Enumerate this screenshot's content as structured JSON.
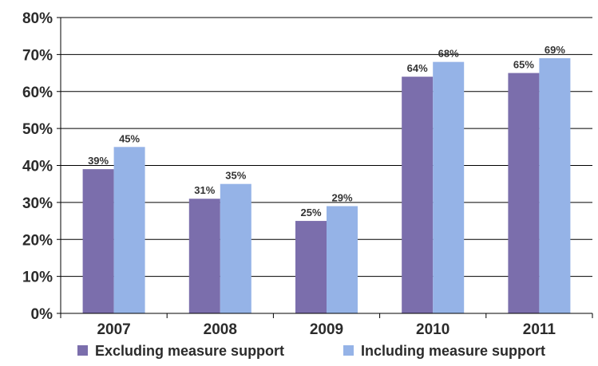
{
  "chart_data": {
    "type": "bar",
    "categories": [
      "2007",
      "2008",
      "2009",
      "2010",
      "2011"
    ],
    "series": [
      {
        "name": "Excluding measure support",
        "values": [
          39,
          31,
          25,
          64,
          65
        ],
        "labels": [
          "39%",
          "31%",
          "25%",
          "64%",
          "65%"
        ],
        "color": "#7B6EAC"
      },
      {
        "name": "Including measure support",
        "values": [
          45,
          35,
          29,
          68,
          69
        ],
        "labels": [
          "45%",
          "35%",
          "29%",
          "68%",
          "69%"
        ],
        "color": "#95B3E7"
      }
    ],
    "ylim": [
      0,
      80
    ],
    "yticks": [
      "0%",
      "10%",
      "20%",
      "30%",
      "40%",
      "50%",
      "60%",
      "70%",
      "80%"
    ],
    "grid": true,
    "legend_position": "bottom"
  }
}
